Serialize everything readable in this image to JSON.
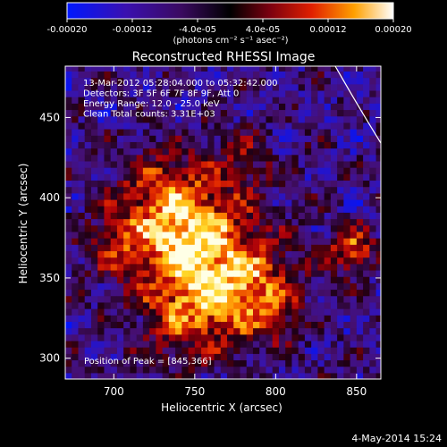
{
  "chart_data": {
    "type": "heatmap",
    "title": "Reconstructed RHESSI Image",
    "xlabel": "Heliocentric X (arcsec)",
    "ylabel": "Heliocentric Y (arcsec)",
    "xlim": [
      670,
      865
    ],
    "ylim": [
      287,
      482
    ],
    "x_ticks": [
      700,
      750,
      800,
      850
    ],
    "y_ticks": [
      300,
      350,
      400,
      450
    ],
    "colorbar": {
      "range": [
        -0.0002,
        0.0002
      ],
      "tick_values": [
        -0.0002,
        -0.00012,
        -4e-05,
        4e-05,
        0.00012,
        0.0002
      ],
      "tick_labels": [
        "-0.00020",
        "-0.00012",
        "-4.0e-05",
        "4.0e-05",
        "0.00012",
        "0.00020"
      ],
      "units": "(photons cm⁻² s⁻¹ asec⁻²)"
    },
    "info_lines": [
      "13-Mar-2012 05:28:04.000 to 05:32:42.000",
      "Detectors: 3F 5F 6F 7F 8F 9F, Att 0",
      "Energy Range: 12.0 - 25.0 keV",
      "Clean     Total counts: 3.31E+03"
    ],
    "peak_label": "Position of Peak = [845,366]",
    "peak": [
      845,
      366
    ],
    "limb_arc": true,
    "colors": {
      "low": "#0000ff",
      "mid": "#000000",
      "high": "#ffffff"
    }
  },
  "footer": {
    "date": "4-May-2014 15:24"
  }
}
